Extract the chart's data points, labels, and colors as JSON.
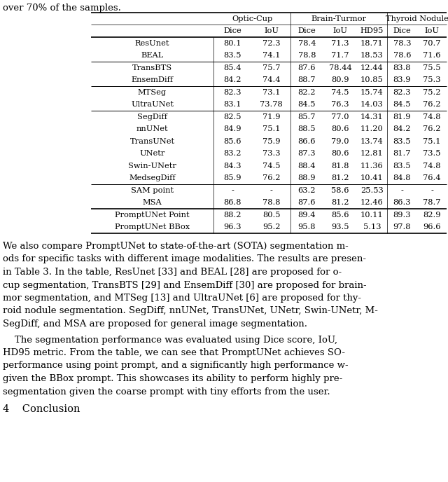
{
  "top_text": "over 70% of the samples.",
  "rows": [
    {
      "name": "ResUnet",
      "vals": [
        "80.1",
        "72.3",
        "78.4",
        "71.3",
        "18.71",
        "78.3",
        "70.7"
      ],
      "group": 1
    },
    {
      "name": "BEAL",
      "vals": [
        "83.5",
        "74.1",
        "78.8",
        "71.7",
        "18.53",
        "78.6",
        "71.6"
      ],
      "group": 1
    },
    {
      "name": "TransBTS",
      "vals": [
        "85.4",
        "75.7",
        "87.6",
        "78.44",
        "12.44",
        "83.8",
        "75.5"
      ],
      "group": 2
    },
    {
      "name": "EnsemDiff",
      "vals": [
        "84.2",
        "74.4",
        "88.7",
        "80.9",
        "10.85",
        "83.9",
        "75.3"
      ],
      "group": 2
    },
    {
      "name": "MTSeg",
      "vals": [
        "82.3",
        "73.1",
        "82.2",
        "74.5",
        "15.74",
        "82.3",
        "75.2"
      ],
      "group": 3
    },
    {
      "name": "UltraUNet",
      "vals": [
        "83.1",
        "73.78",
        "84.5",
        "76.3",
        "14.03",
        "84.5",
        "76.2"
      ],
      "group": 3
    },
    {
      "name": "SegDiff",
      "vals": [
        "82.5",
        "71.9",
        "85.7",
        "77.0",
        "14.31",
        "81.9",
        "74.8"
      ],
      "group": 4
    },
    {
      "name": "nnUNet",
      "vals": [
        "84.9",
        "75.1",
        "88.5",
        "80.6",
        "11.20",
        "84.2",
        "76.2"
      ],
      "group": 4
    },
    {
      "name": "TransUNet",
      "vals": [
        "85.6",
        "75.9",
        "86.6",
        "79.0",
        "13.74",
        "83.5",
        "75.1"
      ],
      "group": 4
    },
    {
      "name": "UNetr",
      "vals": [
        "83.2",
        "73.3",
        "87.3",
        "80.6",
        "12.81",
        "81.7",
        "73.5"
      ],
      "group": 4
    },
    {
      "name": "Swin-UNetr",
      "vals": [
        "84.3",
        "74.5",
        "88.4",
        "81.8",
        "11.36",
        "83.5",
        "74.8"
      ],
      "group": 4
    },
    {
      "name": "MedsegDiff",
      "vals": [
        "85.9",
        "76.2",
        "88.9",
        "81.2",
        "10.41",
        "84.8",
        "76.4"
      ],
      "group": 4
    },
    {
      "name": "SAM point",
      "vals": [
        "-",
        "-",
        "63.2",
        "58.6",
        "25.53",
        "-",
        "-"
      ],
      "group": 5
    },
    {
      "name": "MSA",
      "vals": [
        "86.8",
        "78.8",
        "87.6",
        "81.2",
        "12.46",
        "86.3",
        "78.7"
      ],
      "group": 5
    },
    {
      "name": "PromptUNet Point",
      "vals": [
        "88.2",
        "80.5",
        "89.4",
        "85.6",
        "10.11",
        "89.3",
        "82.9"
      ],
      "group": 6
    },
    {
      "name": "PromptUNet BBox",
      "vals": [
        "96.3",
        "95.2",
        "95.8",
        "93.5",
        "5.13",
        "97.8",
        "96.6"
      ],
      "group": 6
    }
  ],
  "col_headers_1": [
    "Optic-Cup",
    "Brain-Turmor",
    "Thyroid Nodule"
  ],
  "col_headers_2": [
    "Dice",
    "IoU",
    "Dice",
    "IoU",
    "HD95",
    "Dice",
    "IoU"
  ],
  "para1_lines": [
    "We also compare PromptUNet to state-of-the-art (SOTA) segmentation m-",
    "ods for specific tasks with different image modalities. The results are presen-",
    "in Table 3. In the table, ResUnet [33] and BEAL [28] are proposed for o-",
    "cup segmentation, TransBTS [29] and EnsemDiff [30] are proposed for brain-",
    "mor segmentation, and MTSeg [13] and UltraUNet [6] are proposed for thy-",
    "roid nodule segmentation. SegDiff, nnUNet, TransUNet, UNetr, Swin-UNetr, M-",
    "SegDiff, and MSA are proposed for general image segmentation."
  ],
  "para2_lines": [
    "    The segmentation performance was evaluated using Dice score, IoU,",
    "HD95 metric. From the table, we can see that PromptUNet achieves SO-",
    "performance using point prompt, and a significantly high performance w-",
    "given the BBox prompt. This showcases its ability to perform highly pre-",
    "segmentation given the coarse prompt with tiny efforts from the user."
  ],
  "section": "4    Conclusion",
  "bg_color": "#ffffff",
  "text_color": "#000000",
  "font_size_table": 8.2,
  "font_size_body": 9.5,
  "font_size_section": 10.5
}
